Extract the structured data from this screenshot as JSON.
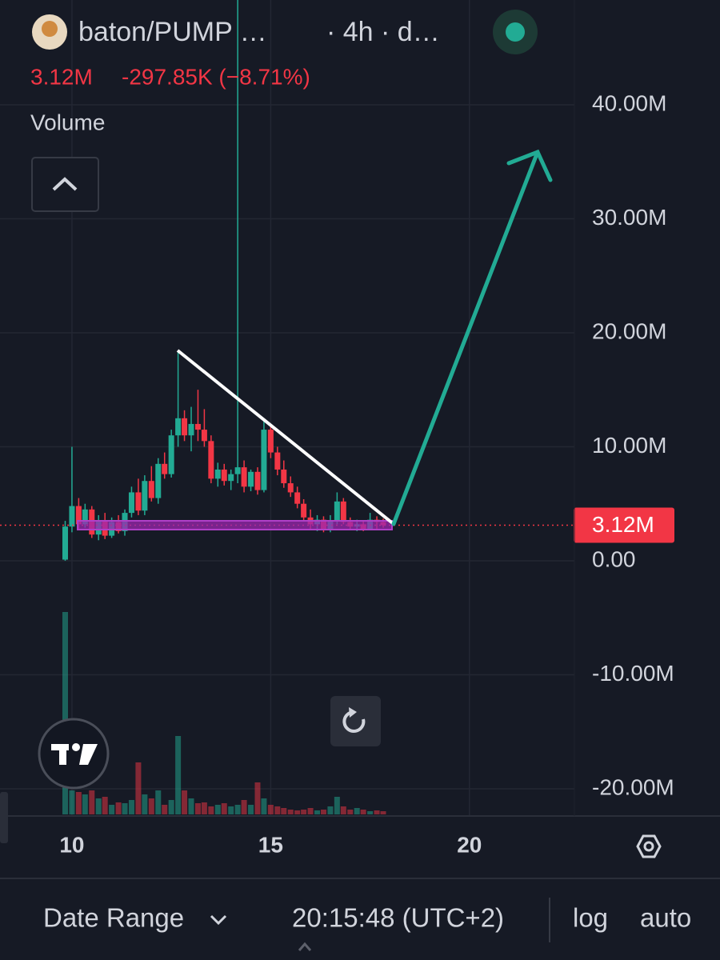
{
  "header": {
    "symbol": "baton/PUMP …",
    "interval": "· 4h · d…",
    "price": "3.12M",
    "change": "-297.85K (−8.71%)",
    "indicator": "Volume"
  },
  "chart_data": {
    "type": "candlestick",
    "x": [
      9.83,
      10,
      10.17,
      10.33,
      10.5,
      10.67,
      10.83,
      11,
      11.17,
      11.33,
      11.5,
      11.67,
      11.83,
      12,
      12.17,
      12.33,
      12.5,
      12.67,
      12.83,
      13,
      13.17,
      13.33,
      13.5,
      13.67,
      13.83,
      14,
      14.17,
      14.33,
      14.5,
      14.67,
      14.83,
      15,
      15.17,
      15.33,
      15.5,
      15.67,
      15.83,
      16,
      16.17,
      16.33,
      16.5,
      16.67,
      16.83,
      17,
      17.17,
      17.33,
      17.5,
      17.67,
      17.83
    ],
    "open": [
      0.1,
      3.0,
      4.8,
      3.2,
      4.5,
      2.3,
      3.5,
      2.2,
      3.4,
      2.6,
      4.2,
      6.0,
      4.4,
      7.0,
      5.5,
      8.5,
      7.6,
      11.0,
      12.5,
      11.0,
      12.0,
      11.5,
      10.5,
      7.2,
      8.0,
      7.0,
      7.6,
      8.2,
      6.5,
      7.8,
      6.2,
      11.5,
      9.5,
      8.0,
      6.8,
      6.0,
      5.0,
      3.8,
      3.2,
      3.6,
      2.7,
      3.5,
      5.2,
      3.4,
      3.0,
      3.2,
      2.8,
      3.6,
      3.4
    ],
    "high": [
      3.5,
      10.0,
      5.5,
      5.0,
      4.8,
      4.0,
      4.2,
      3.8,
      4.0,
      4.5,
      6.5,
      7.2,
      7.5,
      8.3,
      9.0,
      9.5,
      11.5,
      18.4,
      13.2,
      13.5,
      15.0,
      13.3,
      11.0,
      8.6,
      8.5,
      8.0,
      49.5,
      8.8,
      8.0,
      8.2,
      12.5,
      12.0,
      10.0,
      8.8,
      7.4,
      6.5,
      5.4,
      4.5,
      4.0,
      3.9,
      4.0,
      6.0,
      5.5,
      3.8,
      3.6,
      3.5,
      4.2,
      3.9,
      3.7
    ],
    "low": [
      0.0,
      2.5,
      2.8,
      2.9,
      2.0,
      1.8,
      1.9,
      2.0,
      2.4,
      2.2,
      3.8,
      4.0,
      4.0,
      5.2,
      5.0,
      7.2,
      7.3,
      10.0,
      10.5,
      9.6,
      10.5,
      10.0,
      6.8,
      6.5,
      6.6,
      6.2,
      6.8,
      6.0,
      6.1,
      5.8,
      6.0,
      9.0,
      7.5,
      6.4,
      5.6,
      4.6,
      3.5,
      2.8,
      2.6,
      2.5,
      2.5,
      3.2,
      3.2,
      2.7,
      2.6,
      2.6,
      2.7,
      2.8,
      2.9
    ],
    "close": [
      3.0,
      4.8,
      3.2,
      4.5,
      2.3,
      3.5,
      2.2,
      3.4,
      2.6,
      4.2,
      6.0,
      4.4,
      7.0,
      5.5,
      8.5,
      7.6,
      11.0,
      12.5,
      11.0,
      12.0,
      11.5,
      10.5,
      7.2,
      8.0,
      7.0,
      7.6,
      8.2,
      6.5,
      7.8,
      6.2,
      11.5,
      9.5,
      8.0,
      6.8,
      6.0,
      5.0,
      3.8,
      3.2,
      3.6,
      2.7,
      3.5,
      5.2,
      3.4,
      3.0,
      3.2,
      2.8,
      3.6,
      3.4,
      3.12
    ],
    "volume": [
      253,
      30,
      28,
      25,
      30,
      20,
      22,
      12,
      15,
      14,
      18,
      65,
      25,
      20,
      30,
      12,
      18,
      98,
      30,
      20,
      14,
      15,
      10,
      12,
      14,
      10,
      12,
      18,
      12,
      40,
      20,
      12,
      10,
      8,
      6,
      5,
      6,
      8,
      5,
      6,
      10,
      22,
      10,
      6,
      8,
      6,
      4,
      5,
      4
    ],
    "up_color": "#22ab94",
    "down_color": "#f23645",
    "xlim": [
      8.19,
      22.64
    ],
    "xticks": [
      10,
      15,
      20
    ],
    "ylim": [
      -22.39,
      49.19
    ],
    "yticks": [
      {
        "value": -20,
        "label": "-20.00M"
      },
      {
        "value": -10,
        "label": "-10.00M"
      },
      {
        "value": 0,
        "label": "0.00"
      },
      {
        "value": 10,
        "label": "10.00M"
      },
      {
        "value": 20,
        "label": "20.00M"
      },
      {
        "value": 30,
        "label": "30.00M"
      },
      {
        "value": 40,
        "label": "40.00M"
      }
    ],
    "last_value": 3.12,
    "last_value_label": "3.12M",
    "grid": true
  },
  "footer": {
    "date_range": "Date Range",
    "time": "20:15:48 (UTC+2)",
    "log": "log",
    "auto": "auto"
  }
}
